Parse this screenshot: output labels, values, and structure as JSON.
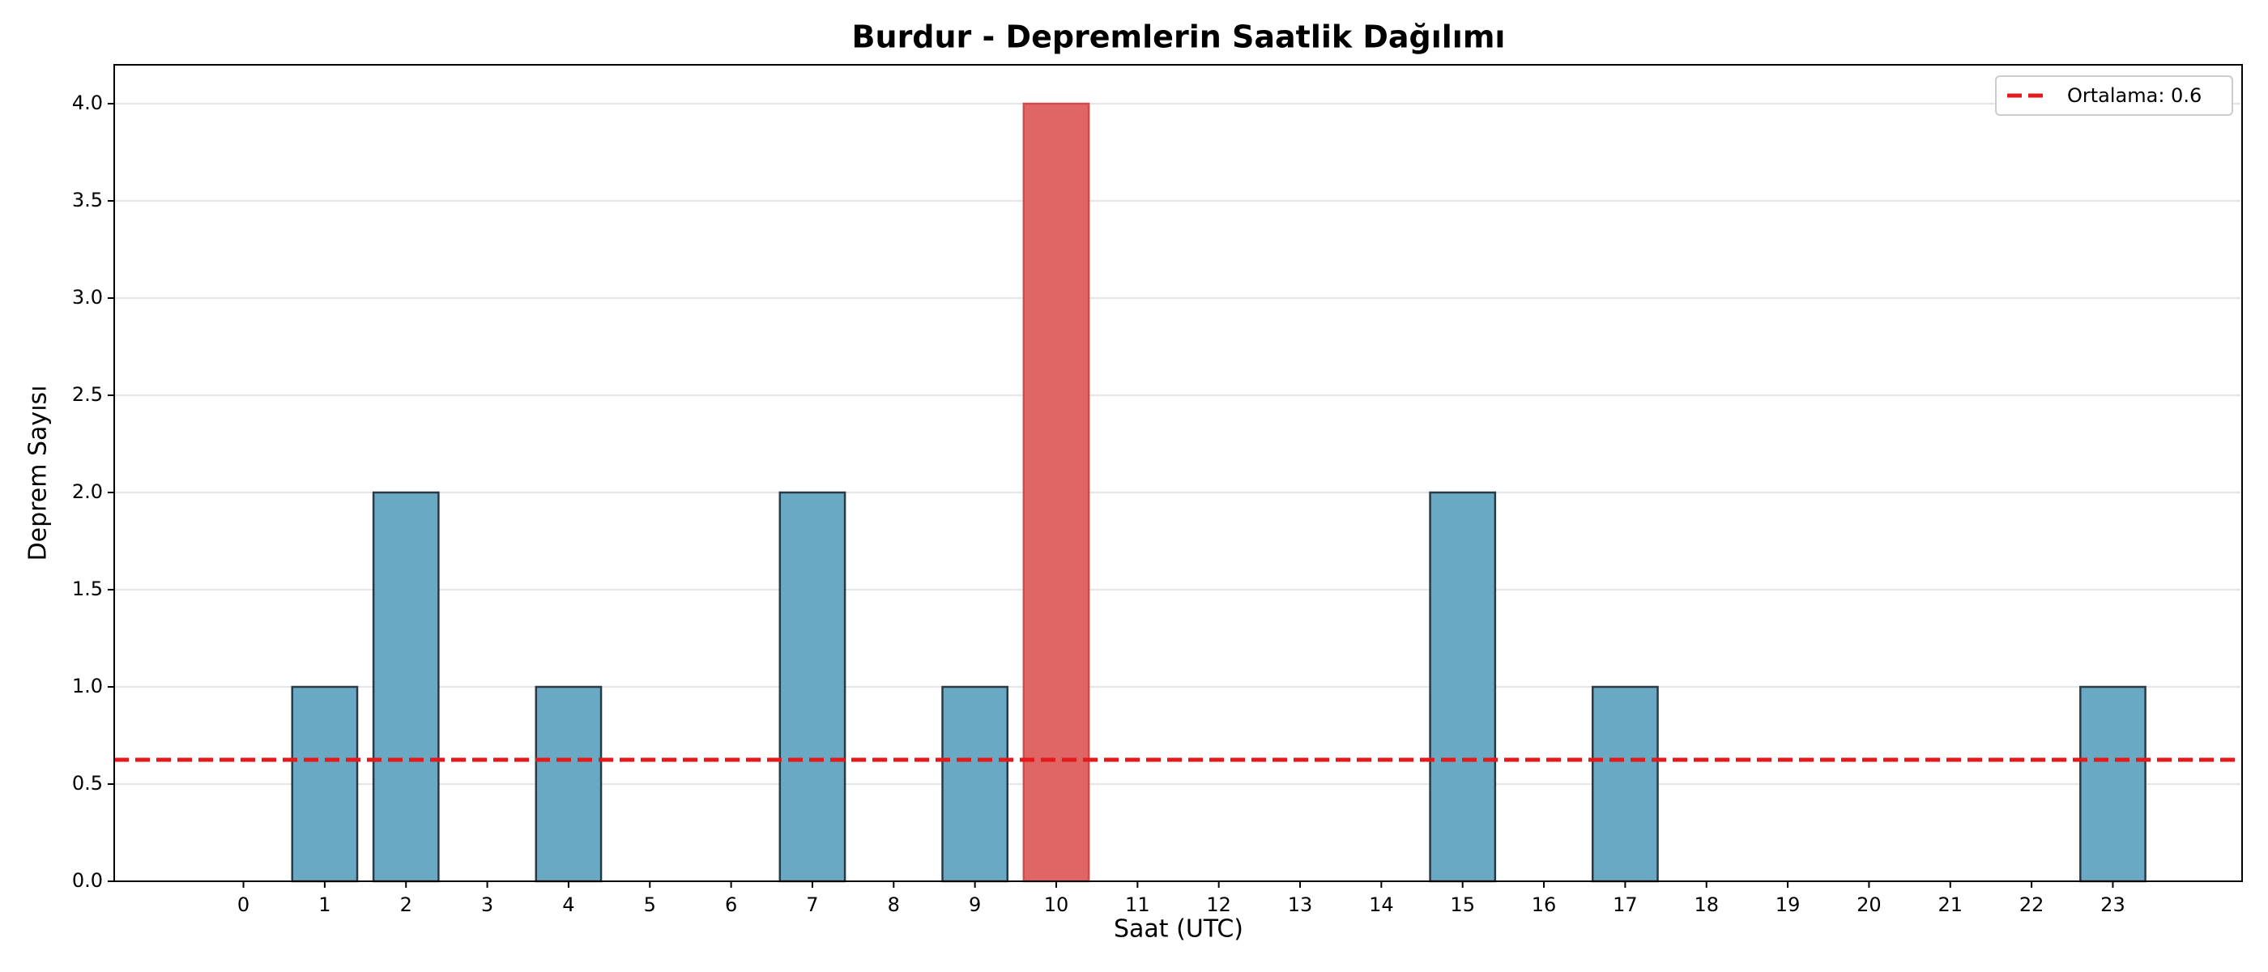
{
  "chart_data": {
    "type": "bar",
    "title": "Burdur - Depremlerin Saatlik Dağılımı",
    "x_label": "Saat (UTC)",
    "y_label": "Deprem Sayısı",
    "categories": [
      "0",
      "1",
      "2",
      "3",
      "4",
      "5",
      "6",
      "7",
      "8",
      "9",
      "10",
      "11",
      "12",
      "13",
      "14",
      "15",
      "16",
      "17",
      "18",
      "19",
      "20",
      "21",
      "22",
      "23"
    ],
    "values": [
      0,
      1,
      2,
      0,
      1,
      0,
      0,
      2,
      0,
      1,
      4,
      0,
      0,
      0,
      0,
      2,
      0,
      1,
      0,
      0,
      0,
      0,
      0,
      1
    ],
    "colors": [
      "#6aa9c4",
      "#6aa9c4",
      "#6aa9c4",
      "#6aa9c4",
      "#6aa9c4",
      "#6aa9c4",
      "#6aa9c4",
      "#6aa9c4",
      "#6aa9c4",
      "#6aa9c4",
      "#e06666",
      "#6aa9c4",
      "#6aa9c4",
      "#6aa9c4",
      "#6aa9c4",
      "#6aa9c4",
      "#6aa9c4",
      "#6aa9c4",
      "#6aa9c4",
      "#6aa9c4",
      "#6aa9c4",
      "#6aa9c4",
      "#6aa9c4",
      "#6aa9c4"
    ],
    "ylim": [
      0,
      4.2
    ],
    "yticks": [
      {
        "value": 0,
        "label": "0.0"
      },
      {
        "value": 0.5,
        "label": "0.5"
      },
      {
        "value": 1,
        "label": "1.0"
      },
      {
        "value": 1.5,
        "label": "1.5"
      },
      {
        "value": 2,
        "label": "2.0"
      },
      {
        "value": 2.5,
        "label": "2.5"
      },
      {
        "value": 3,
        "label": "3.0"
      },
      {
        "value": 3.5,
        "label": "3.5"
      },
      {
        "value": 4,
        "label": "4.0"
      }
    ],
    "mean_line": {
      "value": 0.625,
      "label": "Ortalama: 0.6",
      "color": "#e31a1c"
    },
    "grid": true,
    "legend": "upper right"
  }
}
